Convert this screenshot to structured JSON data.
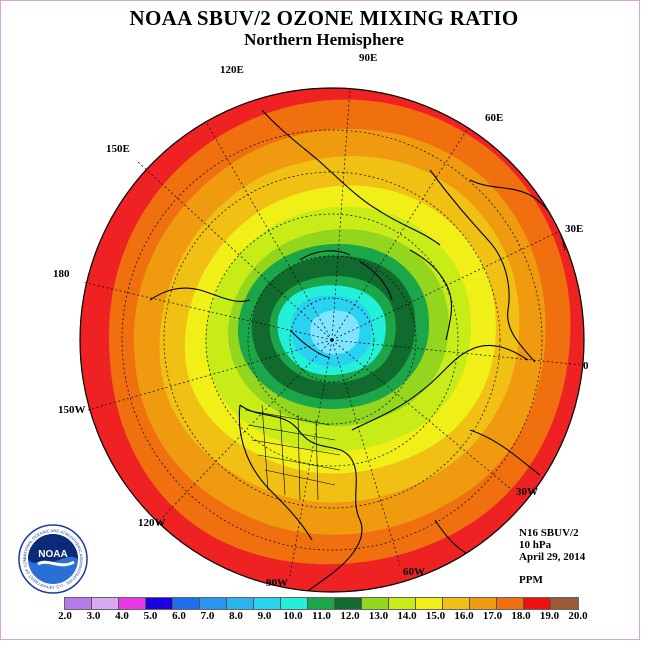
{
  "header": {
    "title": "NOAA SBUV/2 OZONE MIXING RATIO",
    "subtitle": "Northern Hemisphere"
  },
  "longitude_labels": [
    {
      "text": "90E"
    },
    {
      "text": "120E"
    },
    {
      "text": "60E"
    },
    {
      "text": "150E"
    },
    {
      "text": "30E"
    },
    {
      "text": "180"
    },
    {
      "text": "0"
    },
    {
      "text": "150W"
    },
    {
      "text": "30W"
    },
    {
      "text": "120W"
    },
    {
      "text": "60W"
    },
    {
      "text": "90W"
    }
  ],
  "info": {
    "instrument": "N16 SBUV/2",
    "level": "10 hPa",
    "date": "April 29, 2014",
    "units": "PPM"
  },
  "logo": {
    "text": "NOAA",
    "ring_text": "NATIONAL OCEANIC AND ATMOSPHERIC ADMINISTRATION · U.S. DEPARTMENT OF COMMERCE"
  },
  "colorbar": {
    "levels": [
      "2.0",
      "3.0",
      "4.0",
      "5.0",
      "6.0",
      "7.0",
      "8.0",
      "9.0",
      "10.0",
      "11.0",
      "12.0",
      "13.0",
      "14.0",
      "15.0",
      "16.0",
      "17.0",
      "18.0",
      "19.0",
      "20.0"
    ],
    "colors": [
      "#b57be8",
      "#d7a9f0",
      "#e838e8",
      "#1d00e0",
      "#1e6ef0",
      "#2896f0",
      "#2ab4f0",
      "#2ad2f2",
      "#22f0d8",
      "#1ca64a",
      "#116a2e",
      "#94d61e",
      "#c8ec18",
      "#f0f018",
      "#f0c014",
      "#f09a10",
      "#f07010",
      "#ec1010",
      "#9a5a36"
    ]
  },
  "map_colors": {
    "background_ring": "#ee2222",
    "levels_outer_to_inner": [
      "#f07010",
      "#f09a10",
      "#f0c014",
      "#f0f018",
      "#c8ec18",
      "#94d61e",
      "#1ca64a",
      "#116a2e",
      "#2ad2f2",
      "#22f0d8",
      "#60e0ff",
      "#b0e8ff"
    ]
  }
}
